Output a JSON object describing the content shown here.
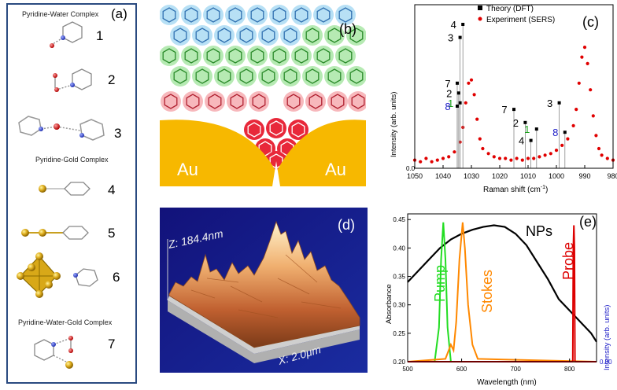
{
  "panel_a": {
    "label": "(a)",
    "sections": [
      {
        "title": "Pyridine-Water Complex",
        "items": [
          "1",
          "2",
          "3"
        ]
      },
      {
        "title": "Pyridine-Gold Complex",
        "items": [
          "4",
          "5",
          "6"
        ]
      },
      {
        "title": "Pyridine-Water-Gold Complex",
        "items": [
          "7"
        ]
      }
    ]
  },
  "panel_b": {
    "label": "(b)",
    "left_metal": "Au",
    "right_metal": "Au"
  },
  "panel_c": {
    "label": "(c)",
    "legend_theory": "Theory (DFT)",
    "legend_experiment": "Experiment (SERS)",
    "ylabel": "Intensity (arb. units)",
    "xlabel": "Raman shift (cm",
    "xlabel_sup": "-1",
    "xlabel_end": ")",
    "origin_label": "0.0",
    "xticks": [
      "1050",
      "1040",
      "1030",
      "1020",
      "1010",
      "1000",
      "990",
      "980"
    ],
    "theory_labels": [
      "4",
      "3",
      "7",
      "2",
      "1",
      "8",
      "7",
      "2",
      "4",
      "1",
      "3",
      "8"
    ],
    "label_colors": {
      "default": "#000000",
      "one": "#1aa01a",
      "eight": "#2020c8"
    }
  },
  "panel_d": {
    "label": "(d)",
    "z_label": "Z: 184.4nm",
    "x_label": "X: 2.0μm"
  },
  "panel_e": {
    "label": "(e)",
    "ylabel_left": "Absorbance",
    "ylabel_right": "Intensity (arb. units)",
    "xlabel": "Wavelength (nm)",
    "yticks_left": [
      "0.45",
      "0.40",
      "0.35",
      "0.30",
      "0.25",
      "0.20"
    ],
    "ytick_right": "0.00",
    "xticks": [
      "500",
      "600",
      "700",
      "800"
    ],
    "curve_labels": {
      "nps": "NPs",
      "pump": "Pump",
      "stokes": "Stokes",
      "probe": "Probe"
    },
    "colors": {
      "nps": "#000000",
      "pump": "#22dd22",
      "stokes": "#ff8800",
      "probe": "#dd0000",
      "right_axis": "#2020c8"
    }
  },
  "chart_data": [
    {
      "type": "scatter",
      "title": "",
      "xlabel": "Raman shift (cm-1)",
      "ylabel": "Intensity (arb. units)",
      "xlim": [
        1050,
        980
      ],
      "series": [
        {
          "name": "Experiment (SERS)",
          "x": [
            1050,
            1048,
            1046,
            1044,
            1042,
            1040,
            1038,
            1036,
            1034,
            1033,
            1032,
            1031,
            1030,
            1029,
            1028,
            1027,
            1026,
            1024,
            1022,
            1020,
            1018,
            1016,
            1014,
            1012,
            1010,
            1008,
            1006,
            1004,
            1002,
            1000,
            998,
            996,
            994,
            993,
            992,
            991,
            990,
            989,
            988,
            987,
            986,
            985,
            984,
            982,
            980
          ],
          "y": [
            0.05,
            0.04,
            0.06,
            0.04,
            0.05,
            0.06,
            0.07,
            0.1,
            0.16,
            0.25,
            0.4,
            0.52,
            0.54,
            0.45,
            0.3,
            0.18,
            0.12,
            0.09,
            0.07,
            0.06,
            0.06,
            0.05,
            0.06,
            0.05,
            0.06,
            0.06,
            0.07,
            0.08,
            0.09,
            0.11,
            0.14,
            0.18,
            0.26,
            0.36,
            0.52,
            0.68,
            0.74,
            0.64,
            0.48,
            0.32,
            0.2,
            0.12,
            0.08,
            0.06,
            0.05
          ]
        },
        {
          "name": "Theory (DFT)",
          "x": [
            1033,
            1034,
            1035,
            1034.5,
            1034,
            1035,
            1015,
            1011,
            1009,
            1007,
            999,
            997
          ],
          "y": [
            0.88,
            0.8,
            0.52,
            0.46,
            0.4,
            0.38,
            0.36,
            0.28,
            0.17,
            0.24,
            0.4,
            0.22
          ]
        }
      ]
    },
    {
      "type": "line",
      "title": "",
      "xlabel": "Wavelength (nm)",
      "ylabel": "Absorbance",
      "xlim": [
        500,
        850
      ],
      "ylim": [
        0.2,
        0.45
      ],
      "series": [
        {
          "name": "NPs",
          "x": [
            500,
            520,
            540,
            560,
            580,
            600,
            620,
            640,
            660,
            680,
            700,
            720,
            740,
            760,
            780,
            800,
            820,
            840,
            850
          ],
          "y": [
            0.34,
            0.36,
            0.38,
            0.4,
            0.415,
            0.425,
            0.432,
            0.437,
            0.44,
            0.437,
            0.425,
            0.405,
            0.375,
            0.345,
            0.31,
            0.29,
            0.27,
            0.25,
            0.235
          ]
        },
        {
          "name": "Pump",
          "x": [
            500,
            550,
            558,
            562,
            566,
            570,
            574,
            580,
            600,
            850
          ],
          "y": [
            0.2,
            0.2,
            0.26,
            0.38,
            0.445,
            0.38,
            0.26,
            0.2,
            0.2,
            0.2
          ]
        },
        {
          "name": "Stokes",
          "x": [
            500,
            570,
            580,
            585,
            590,
            596,
            602,
            606,
            612,
            620,
            630,
            850
          ],
          "y": [
            0.2,
            0.205,
            0.23,
            0.22,
            0.27,
            0.38,
            0.445,
            0.4,
            0.3,
            0.23,
            0.205,
            0.2
          ]
        },
        {
          "name": "Probe",
          "x": [
            500,
            806,
            807,
            808,
            809,
            810,
            850
          ],
          "y": [
            0.2,
            0.2,
            0.4,
            0.44,
            0.4,
            0.2,
            0.2
          ]
        }
      ]
    }
  ]
}
